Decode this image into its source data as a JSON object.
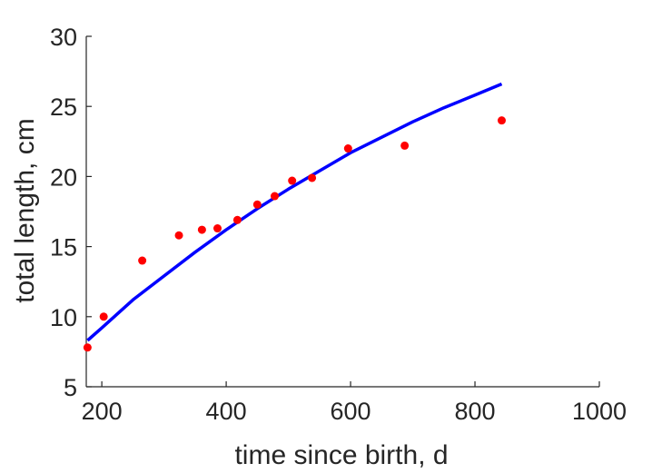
{
  "chart_data": {
    "type": "scatter",
    "xlabel": "time since birth, d",
    "ylabel": "total length, cm",
    "xlim": [
      175,
      1000
    ],
    "ylim": [
      5,
      30
    ],
    "x_ticks": [
      200,
      400,
      600,
      800,
      1000
    ],
    "y_ticks": [
      5,
      10,
      15,
      20,
      25,
      30
    ],
    "grid": false,
    "colors": {
      "points": "#ff0000",
      "fit": "#0000ff",
      "axis": "#262626"
    },
    "series": [
      {
        "type": "scatter",
        "x": [
          177,
          203,
          265,
          324,
          361,
          386,
          418,
          450,
          478,
          506,
          538,
          596,
          687,
          843
        ],
        "y": [
          7.8,
          10.0,
          14.0,
          15.8,
          16.2,
          16.3,
          16.9,
          18.0,
          18.6,
          19.7,
          19.9,
          22.0,
          22.2,
          24.0
        ]
      },
      {
        "type": "line",
        "x": [
          177,
          200,
          250,
          300,
          350,
          400,
          450,
          500,
          550,
          600,
          650,
          700,
          750,
          800,
          843
        ],
        "y": [
          8.3,
          9.2,
          11.2,
          12.9,
          14.6,
          16.2,
          17.7,
          19.1,
          20.4,
          21.7,
          22.8,
          23.9,
          24.9,
          25.8,
          26.6
        ]
      }
    ]
  }
}
